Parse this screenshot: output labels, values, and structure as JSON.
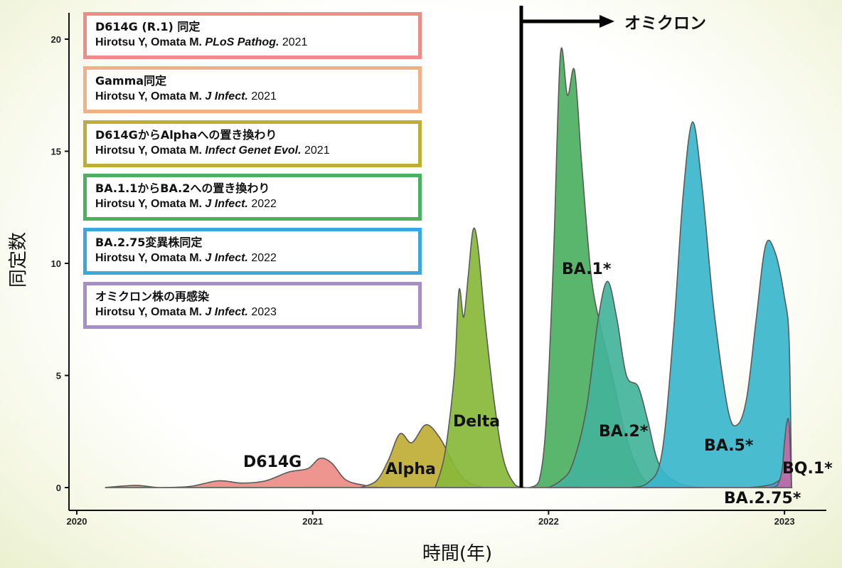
{
  "chart_data": {
    "type": "area",
    "xlabel": "時間(年)",
    "ylabel": "同定数",
    "xlim": [
      2020.0,
      2023.15
    ],
    "ylim": [
      0,
      21
    ],
    "x_ticks": [
      2020,
      2021,
      2022,
      2023
    ],
    "x_tick_labels": [
      "2020",
      "2021",
      "2022",
      "2023"
    ],
    "y_ticks": [
      0,
      5,
      10,
      15,
      20
    ],
    "y_tick_labels": [
      "0",
      "5",
      "10",
      "15",
      "20"
    ],
    "grid": false,
    "marker_line": {
      "x": 2021.88,
      "label": "オミクロン"
    },
    "series": [
      {
        "name": "D614G",
        "color": "#ee8c87",
        "points": [
          [
            2020.12,
            0
          ],
          [
            2020.25,
            0.1
          ],
          [
            2020.35,
            0
          ],
          [
            2020.48,
            0.05
          ],
          [
            2020.6,
            0.3
          ],
          [
            2020.7,
            0.2
          ],
          [
            2020.8,
            0.3
          ],
          [
            2020.9,
            0.7
          ],
          [
            2020.98,
            0.85
          ],
          [
            2021.03,
            1.3
          ],
          [
            2021.08,
            1.1
          ],
          [
            2021.14,
            0.35
          ],
          [
            2021.22,
            0.1
          ],
          [
            2021.3,
            0
          ]
        ]
      },
      {
        "name": "Alpha",
        "color": "#bfae35",
        "points": [
          [
            2021.2,
            0
          ],
          [
            2021.27,
            0.3
          ],
          [
            2021.32,
            1.2
          ],
          [
            2021.37,
            2.4
          ],
          [
            2021.42,
            2.0
          ],
          [
            2021.48,
            2.8
          ],
          [
            2021.54,
            2.2
          ],
          [
            2021.6,
            1.0
          ],
          [
            2021.65,
            0.3
          ],
          [
            2021.72,
            0
          ]
        ]
      },
      {
        "name": "Delta",
        "color": "#88b83a",
        "points": [
          [
            2021.52,
            0
          ],
          [
            2021.56,
            1.5
          ],
          [
            2021.6,
            5.0
          ],
          [
            2021.62,
            8.8
          ],
          [
            2021.64,
            7.6
          ],
          [
            2021.66,
            9.5
          ],
          [
            2021.68,
            11.5
          ],
          [
            2021.7,
            10.8
          ],
          [
            2021.73,
            7.5
          ],
          [
            2021.77,
            3.8
          ],
          [
            2021.81,
            1.2
          ],
          [
            2021.86,
            0.1
          ],
          [
            2021.9,
            0
          ]
        ]
      },
      {
        "name": "BA.1*",
        "color": "#4bb060",
        "points": [
          [
            2021.92,
            0
          ],
          [
            2021.96,
            0.3
          ],
          [
            2021.99,
            3.0
          ],
          [
            2022.02,
            10.0
          ],
          [
            2022.05,
            19.3
          ],
          [
            2022.08,
            17.5
          ],
          [
            2022.11,
            18.6
          ],
          [
            2022.14,
            14.5
          ],
          [
            2022.18,
            9.5
          ],
          [
            2022.22,
            7.2
          ],
          [
            2022.27,
            5.0
          ],
          [
            2022.32,
            2.6
          ],
          [
            2022.37,
            1.0
          ],
          [
            2022.42,
            0.2
          ],
          [
            2022.48,
            0
          ]
        ]
      },
      {
        "name": "BA.2*",
        "color": "#43b49a",
        "points": [
          [
            2022.0,
            0
          ],
          [
            2022.05,
            0.3
          ],
          [
            2022.1,
            1.0
          ],
          [
            2022.16,
            3.5
          ],
          [
            2022.21,
            7.5
          ],
          [
            2022.25,
            9.2
          ],
          [
            2022.29,
            7.5
          ],
          [
            2022.33,
            5.0
          ],
          [
            2022.38,
            4.5
          ],
          [
            2022.42,
            3.0
          ],
          [
            2022.47,
            1.0
          ],
          [
            2022.55,
            0.2
          ],
          [
            2022.65,
            0
          ]
        ]
      },
      {
        "name": "BA.5*",
        "color": "#3ab6cc",
        "points": [
          [
            2022.35,
            0
          ],
          [
            2022.42,
            0.2
          ],
          [
            2022.48,
            1.5
          ],
          [
            2022.53,
            7.0
          ],
          [
            2022.57,
            13.0
          ],
          [
            2022.61,
            16.3
          ],
          [
            2022.65,
            13.5
          ],
          [
            2022.7,
            8.0
          ],
          [
            2022.76,
            3.5
          ],
          [
            2022.8,
            2.8
          ],
          [
            2022.84,
            4.0
          ],
          [
            2022.88,
            7.5
          ],
          [
            2022.92,
            10.8
          ],
          [
            2022.96,
            10.5
          ],
          [
            2023.0,
            8.5
          ],
          [
            2023.02,
            6.5
          ],
          [
            2023.03,
            0
          ]
        ]
      },
      {
        "name": "BA.2.75*",
        "color": "#4a9be0",
        "points": [
          [
            2022.85,
            0
          ],
          [
            2022.9,
            0.05
          ],
          [
            2022.95,
            0.15
          ],
          [
            2023.0,
            0.4
          ],
          [
            2023.03,
            0
          ]
        ]
      },
      {
        "name": "BQ.1*",
        "color": "#c06aa8",
        "points": [
          [
            2022.94,
            0
          ],
          [
            2022.97,
            0.1
          ],
          [
            2022.99,
            0.8
          ],
          [
            2023.0,
            2.0
          ],
          [
            2023.01,
            2.9
          ],
          [
            2023.02,
            2.8
          ],
          [
            2023.03,
            0
          ]
        ]
      }
    ],
    "series_labels": [
      {
        "name": "D614G",
        "text": "D614G"
      },
      {
        "name": "Alpha",
        "text": "Alpha"
      },
      {
        "name": "Delta",
        "text": "Delta"
      },
      {
        "name": "BA.1*",
        "text": "BA.1*"
      },
      {
        "name": "BA.2*",
        "text": "BA.2*"
      },
      {
        "name": "BA.5*",
        "text": "BA.5*"
      },
      {
        "name": "BQ.1*",
        "text": "BQ.1*"
      },
      {
        "name": "BA.2.75*",
        "text": "BA.2.75*"
      }
    ]
  },
  "references": [
    {
      "title": "D614G (R.1) 同定",
      "authors": "Hirotsu Y, Omata M.",
      "journal": "PLoS Pathog.",
      "year": "2021",
      "color": "#ee8c87"
    },
    {
      "title": "Gamma同定",
      "authors": "Hirotsu Y, Omata M.",
      "journal": "J Infect.",
      "year": "2021",
      "color": "#f0b088"
    },
    {
      "title": "D614GからAlphaへの置き換わり",
      "authors": "Hirotsu Y, Omata M.",
      "journal": "Infect Genet Evol.",
      "year": "2021",
      "color": "#bfae35"
    },
    {
      "title": "BA.1.1からBA.2への置き換わり",
      "authors": "Hirotsu Y, Omata M.",
      "journal": "J Infect.",
      "year": "2022",
      "color": "#4bb060"
    },
    {
      "title": "BA.2.75変異株同定",
      "authors": "Hirotsu Y, Omata M.",
      "journal": "J Infect.",
      "year": "2022",
      "color": "#3aa8e0"
    },
    {
      "title": "オミクロン株の再感染",
      "authors": "Hirotsu Y, Omata M.",
      "journal": "J Infect.",
      "year": "2023",
      "color": "#a58fc4"
    }
  ]
}
